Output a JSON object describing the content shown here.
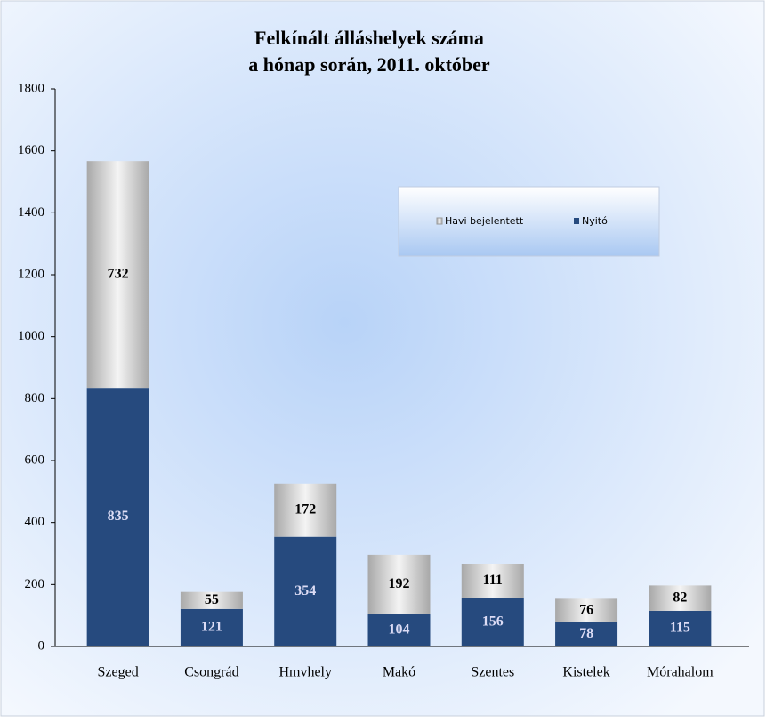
{
  "chart_data": {
    "type": "stacked_bar",
    "title": [
      "Felkínált álláshelyek száma",
      "a hónap során, 2011. október"
    ],
    "categories": [
      "Szeged",
      "Csongrád",
      "Hmvhely",
      "Makó",
      "Szentes",
      "Kistelek",
      "Mórahalom"
    ],
    "series": [
      {
        "name": "Nyitó",
        "color": "#264a7e",
        "values": [
          835,
          121,
          354,
          104,
          156,
          78,
          115
        ]
      },
      {
        "name": "Havi bejelentett",
        "color": "#c8c8c8",
        "values": [
          732,
          55,
          172,
          192,
          111,
          76,
          82
        ]
      }
    ],
    "legend_order": [
      "Havi bejelentett",
      "Nyitó"
    ],
    "ylim": [
      0,
      1800
    ],
    "yticks": [
      0,
      200,
      400,
      600,
      800,
      1000,
      1200,
      1400,
      1600,
      1800
    ],
    "grid": false
  }
}
